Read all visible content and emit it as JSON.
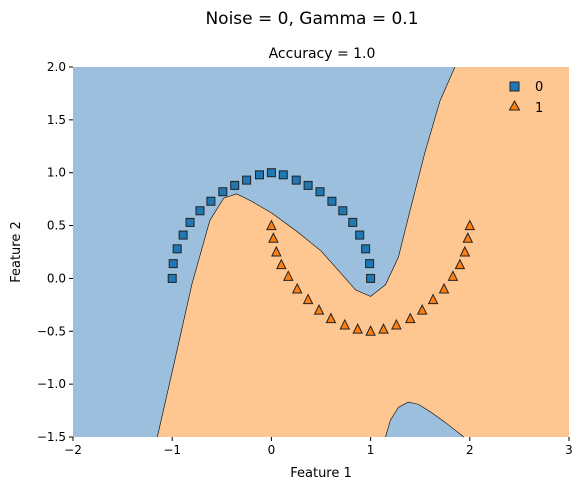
{
  "chart_data": {
    "type": "scatter",
    "suptitle": "Noise = 0, Gamma = 0.1",
    "title": "Accuracy = 1.0",
    "xlabel": "Feature 1",
    "ylabel": "Feature 2",
    "xlim": [
      -2,
      3
    ],
    "ylim": [
      -1.5,
      2.0
    ],
    "xticks": [
      -2,
      -1,
      0,
      1,
      2,
      3
    ],
    "xtick_labels": [
      "−2",
      "−1",
      "0",
      "1",
      "2",
      "3"
    ],
    "yticks": [
      -1.5,
      -1.0,
      -0.5,
      0.0,
      0.5,
      1.0,
      1.5,
      2.0
    ],
    "ytick_labels": [
      "−1.5",
      "−1.0",
      "−0.5",
      "0.0",
      "0.5",
      "1.0",
      "1.5",
      "2.0"
    ],
    "legend_position": "top-right",
    "colors": {
      "region_0": "#9bbfdc",
      "region_1": "#fec691",
      "series_0": "#1f77b4",
      "series_1": "#ff7f0e",
      "edge": "#222222"
    },
    "series": [
      {
        "name": "0",
        "marker": "square",
        "x": [
          -1.0,
          -0.99,
          -0.95,
          -0.89,
          -0.82,
          -0.72,
          -0.61,
          -0.49,
          -0.37,
          -0.25,
          -0.12,
          0.0,
          0.12,
          0.25,
          0.37,
          0.49,
          0.61,
          0.72,
          0.82,
          0.89,
          0.95,
          0.99,
          1.0
        ],
        "y": [
          0.0,
          0.14,
          0.28,
          0.41,
          0.53,
          0.64,
          0.73,
          0.82,
          0.88,
          0.93,
          0.98,
          1.0,
          0.98,
          0.93,
          0.88,
          0.82,
          0.73,
          0.64,
          0.53,
          0.41,
          0.28,
          0.14,
          0.0
        ]
      },
      {
        "name": "1",
        "marker": "triangle",
        "x": [
          0.0,
          0.02,
          0.05,
          0.1,
          0.17,
          0.26,
          0.37,
          0.48,
          0.6,
          0.74,
          0.87,
          1.0,
          1.13,
          1.26,
          1.4,
          1.52,
          1.63,
          1.74,
          1.83,
          1.9,
          1.95,
          1.98,
          2.0
        ],
        "y": [
          0.5,
          0.38,
          0.25,
          0.13,
          0.02,
          -0.1,
          -0.2,
          -0.3,
          -0.38,
          -0.44,
          -0.48,
          -0.5,
          -0.48,
          -0.44,
          -0.38,
          -0.3,
          -0.2,
          -0.1,
          0.02,
          0.13,
          0.25,
          0.38,
          0.5
        ]
      }
    ],
    "decision_boundary": {
      "main": {
        "x": [
          -1.15,
          -0.98,
          -0.8,
          -0.62,
          -0.48,
          -0.35,
          -0.2,
          0.0,
          0.25,
          0.5,
          0.7,
          0.85,
          1.0,
          1.15,
          1.28,
          1.4,
          1.55,
          1.7,
          1.85
        ],
        "y": [
          -1.5,
          -0.8,
          -0.05,
          0.55,
          0.76,
          0.8,
          0.73,
          0.62,
          0.45,
          0.26,
          0.05,
          -0.11,
          -0.17,
          -0.06,
          0.2,
          0.65,
          1.2,
          1.68,
          2.0
        ]
      },
      "bottom_island": {
        "x": [
          1.15,
          1.2,
          1.28,
          1.38,
          1.48,
          1.6,
          1.75,
          1.94
        ],
        "y": [
          -1.5,
          -1.34,
          -1.22,
          -1.17,
          -1.19,
          -1.26,
          -1.36,
          -1.5
        ]
      }
    }
  }
}
